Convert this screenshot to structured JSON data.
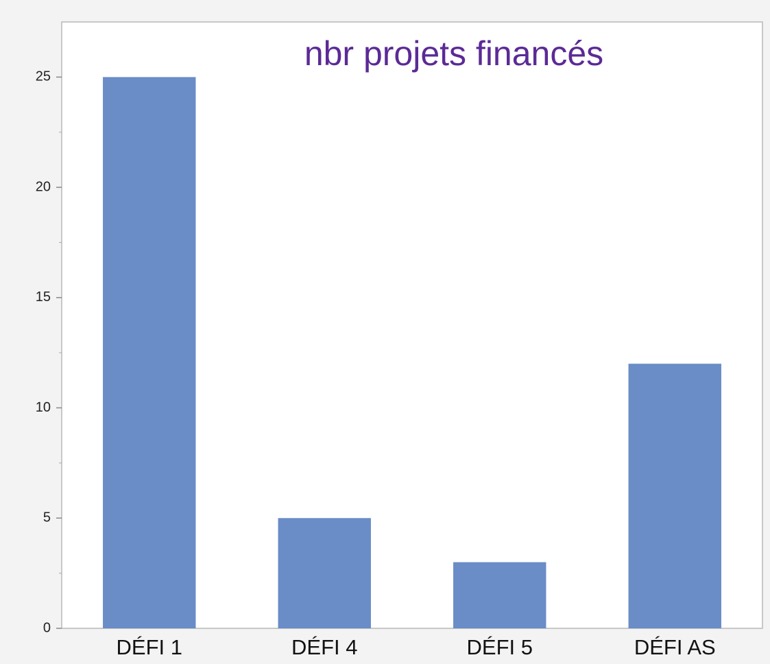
{
  "chart_data": {
    "type": "bar",
    "title": "nbr projets financés",
    "categories": [
      "DÉFI 1",
      "DÉFI 4",
      "DÉFI 5",
      "DÉFI AS"
    ],
    "values": [
      25,
      5,
      3,
      12
    ],
    "color": "#6a8cc7",
    "ylim": [
      0,
      27.5
    ],
    "yticks": [
      0,
      5,
      10,
      15,
      20,
      25
    ],
    "minor_yticks": [
      2.5,
      7.5,
      12.5,
      17.5,
      22.5
    ],
    "grid": false
  }
}
